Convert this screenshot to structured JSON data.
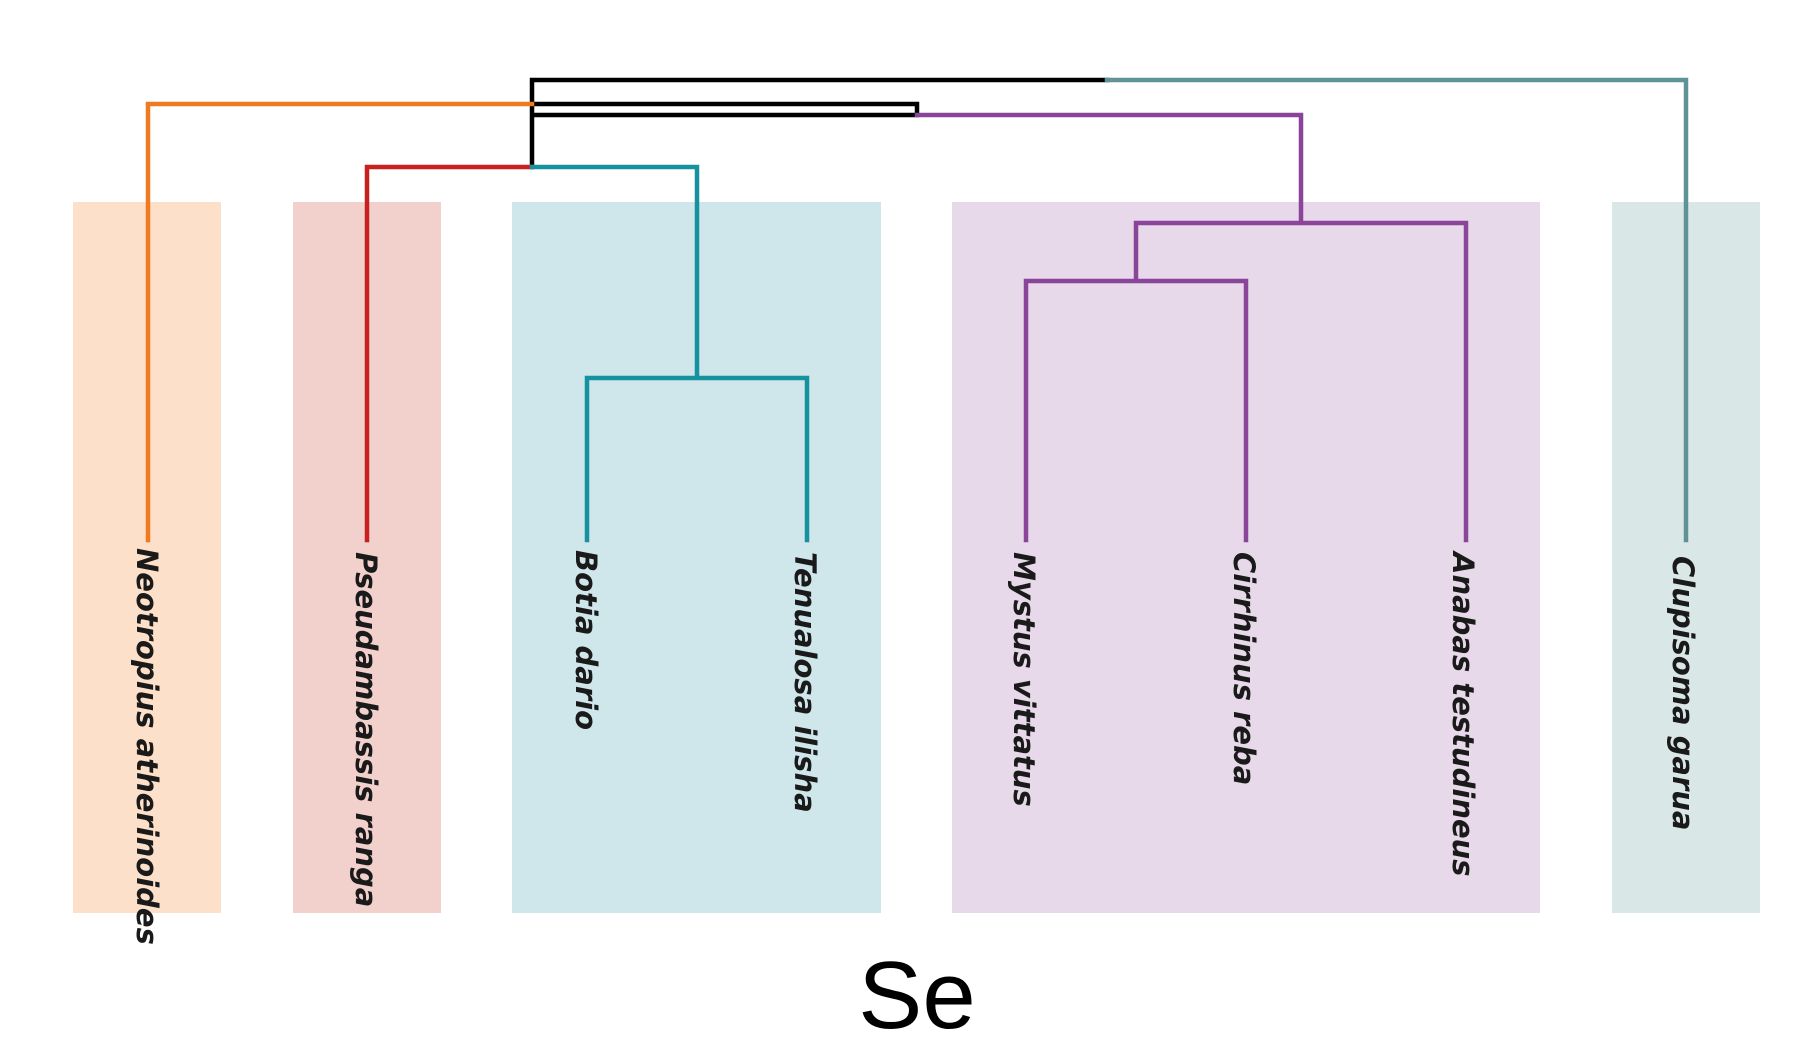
{
  "caption": "Se",
  "colors": {
    "root": "#000000",
    "neotropius": "#f07a1f",
    "pseudambassis": "#c8201f",
    "teal": "#16929e",
    "purple": "#8a459b",
    "clupisoma": "#5e9294"
  },
  "groups": [
    {
      "name": "neotropius-group",
      "fill": "#fde0c9"
    },
    {
      "name": "pseudambassis-group",
      "fill": "#f2d0cc"
    },
    {
      "name": "botia-tenualosa-group",
      "fill": "#cfe6eb"
    },
    {
      "name": "mystus-cirrhinus-anabas-group",
      "fill": "#e7d9e9"
    },
    {
      "name": "clupisoma-group",
      "fill": "#d9e7e6"
    }
  ],
  "leaves": [
    {
      "id": "neotropius",
      "label": "Neotropius atherinoides"
    },
    {
      "id": "pseudambassis",
      "label": "Pseudambassis ranga"
    },
    {
      "id": "botia",
      "label": "Botia dario"
    },
    {
      "id": "tenualosa",
      "label": "Tenualosa ilisha"
    },
    {
      "id": "mystus",
      "label": "Mystus vittatus"
    },
    {
      "id": "cirrhinus",
      "label": "Cirrhinus reba"
    },
    {
      "id": "anabas",
      "label": "Anabas testudineus"
    },
    {
      "id": "clupisoma",
      "label": "Clupisoma garua"
    }
  ]
}
